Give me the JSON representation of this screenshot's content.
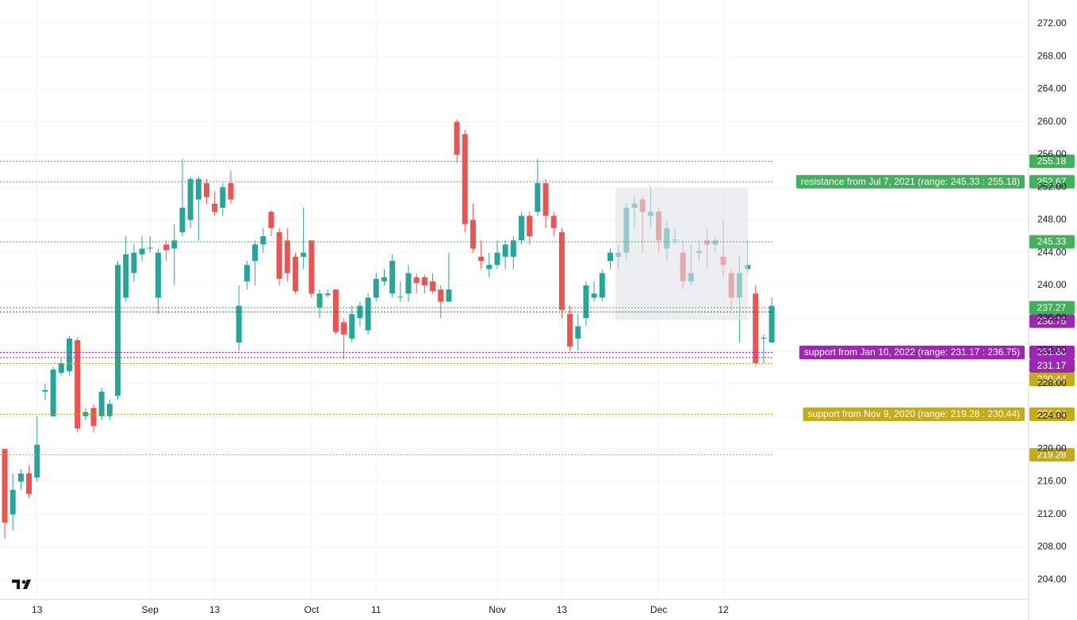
{
  "chart_data": {
    "type": "candlestick",
    "categories": [
      null,
      null,
      null,
      null,
      "13",
      null,
      null,
      null,
      null,
      null,
      null,
      null,
      null,
      null,
      null,
      null,
      null,
      null,
      "Sep",
      null,
      null,
      null,
      null,
      null,
      null,
      null,
      "13",
      null,
      null,
      null,
      null,
      null,
      null,
      null,
      null,
      null,
      null,
      null,
      "Oct",
      null,
      null,
      null,
      null,
      null,
      null,
      null,
      "11",
      null,
      null,
      null,
      null,
      null,
      null,
      null,
      null,
      null,
      null,
      null,
      null,
      null,
      null,
      "Nov",
      null,
      null,
      null,
      null,
      null,
      null,
      null,
      "13",
      null,
      null,
      null,
      null,
      null,
      null,
      null,
      null,
      null,
      null,
      null,
      "Dec",
      null,
      null,
      null,
      null,
      null,
      null,
      null,
      "12",
      null,
      null,
      null,
      null,
      null,
      null
    ],
    "open": [
      220,
      212,
      216,
      217,
      216.5,
      227,
      224,
      229.3,
      229.5,
      233.3,
      224,
      225,
      224,
      224,
      226.5,
      238.5,
      241.5,
      243.8,
      244.5,
      238.5,
      245,
      244.5,
      246.5,
      248,
      250.5,
      252.5,
      250,
      249.5,
      252.5,
      233,
      240.5,
      243,
      245,
      249,
      246.5,
      245.5,
      243.5,
      243.5,
      245.5,
      237.3,
      238.8,
      239.5,
      235.5,
      233.5,
      236,
      234.5,
      238.5,
      240.5,
      239,
      238.5,
      239,
      241,
      241,
      240.5,
      239.5,
      238,
      260,
      258.5,
      248,
      243.5,
      242,
      242.5,
      243.5,
      243.5,
      245.5,
      248.5,
      249,
      252.5,
      248.5,
      246.5,
      236.5,
      233.5,
      236,
      238.5,
      238.5,
      243,
      243.5,
      244,
      249.5,
      250.5,
      248.5,
      249,
      244.5,
      245.5,
      244,
      240.5,
      244,
      245.5,
      245,
      243.5,
      241.5,
      238.5,
      242,
      239,
      233.5,
      233
    ],
    "high": [
      220,
      217,
      217.5,
      218,
      224,
      228,
      230,
      231,
      233.8,
      233.6,
      225,
      225.5,
      227.5,
      226,
      243,
      246,
      245,
      246,
      246,
      244.5,
      245.5,
      247.5,
      255.5,
      253.3,
      253.3,
      253,
      251.5,
      252.5,
      254,
      240,
      243,
      245.5,
      247,
      249.2,
      247,
      247,
      244,
      249.5,
      245.5,
      239.5,
      239.5,
      239.5,
      236,
      237.5,
      238,
      239,
      241.5,
      242,
      243.8,
      240.5,
      242.5,
      241.5,
      241.3,
      241.5,
      240,
      244,
      260.3,
      259,
      250,
      245.5,
      244,
      245.5,
      245.5,
      246,
      249,
      249,
      255.5,
      253,
      249,
      247,
      237.5,
      236.5,
      240.5,
      240.5,
      242,
      244.5,
      245,
      250,
      251,
      251,
      252,
      249.5,
      248,
      247,
      245.5,
      245,
      245.5,
      247,
      246,
      248,
      242,
      243.5,
      245.5,
      240,
      234,
      238.5
    ],
    "low": [
      209,
      210,
      215,
      214,
      216,
      226,
      224,
      229,
      229,
      222,
      223.5,
      222,
      223.5,
      223.5,
      226,
      238,
      240.5,
      243,
      244,
      236.5,
      243,
      240,
      246,
      247,
      245.5,
      250,
      248.5,
      248.5,
      250,
      232,
      239.5,
      240,
      244,
      246,
      240,
      240.5,
      239,
      242,
      238.5,
      236,
      238.5,
      234,
      231,
      233,
      235,
      234,
      238,
      240,
      238.5,
      238,
      238,
      239,
      239,
      239,
      236,
      238,
      255,
      246.5,
      244,
      242,
      241,
      242,
      242,
      242,
      245,
      245,
      248.5,
      247,
      246,
      236,
      232,
      232,
      235,
      238,
      238,
      242,
      242,
      243,
      247,
      244,
      247,
      244,
      243,
      245,
      239.5,
      240,
      243,
      242,
      244,
      241,
      237,
      233,
      241.5,
      230.2,
      230.5,
      233
    ],
    "close": [
      211,
      215,
      217,
      214.5,
      220.5,
      227.2,
      229.7,
      230.5,
      233.5,
      222.5,
      224.5,
      222.8,
      227,
      225.5,
      242.5,
      243.8,
      244,
      244.5,
      244.6,
      244,
      244.3,
      245.5,
      249.5,
      253,
      253,
      250.8,
      249,
      252,
      250.5,
      237.5,
      242.5,
      245,
      246,
      247,
      240.8,
      241.5,
      239.3,
      244,
      239,
      239,
      239,
      234.3,
      234,
      236.5,
      237.5,
      238.5,
      240.8,
      241,
      243,
      238.6,
      241.5,
      240.3,
      240,
      239.3,
      238,
      239.5,
      256,
      247.5,
      244.5,
      243,
      242.5,
      244,
      245,
      245.5,
      248.5,
      246,
      252.5,
      248.5,
      247,
      237,
      232.5,
      235,
      240,
      239,
      241.5,
      244,
      244,
      249.5,
      250,
      249,
      249,
      245.5,
      247,
      245.6,
      240.5,
      241.5,
      244.2,
      245,
      245.5,
      242.5,
      238.5,
      241.5,
      242.5,
      230.5,
      233.6,
      237.5
    ],
    "up_color": "#26a69a",
    "down_color": "#ef5350",
    "ylim": [
      201.6,
      274.9
    ],
    "yticks": [
      {
        "value": 204,
        "label": "204.00"
      },
      {
        "value": 208,
        "label": "208.00"
      },
      {
        "value": 212,
        "label": "212.00"
      },
      {
        "value": 216,
        "label": "216.00"
      },
      {
        "value": 220,
        "label": "220.00"
      },
      {
        "value": 224,
        "label": "224.00"
      },
      {
        "value": 228,
        "label": "228.00"
      },
      {
        "value": 232,
        "label": "232.00"
      },
      {
        "value": 236,
        "label": "236.00"
      },
      {
        "value": 240,
        "label": "240.00"
      },
      {
        "value": 244,
        "label": "244.00"
      },
      {
        "value": 248,
        "label": "248.00"
      },
      {
        "value": 252,
        "label": "252.00"
      },
      {
        "value": 256,
        "label": "256.00"
      },
      {
        "value": 260,
        "label": "260.00"
      },
      {
        "value": 264,
        "label": "264.00"
      },
      {
        "value": 268,
        "label": "268.00"
      },
      {
        "value": 272,
        "label": "272.00"
      }
    ],
    "grid": true,
    "levels": [
      {
        "value": 255.18,
        "color": "#43b05c"
      },
      {
        "value": 252.67,
        "color": "#43b05c",
        "annotation": "resistance from Jul 7, 2021 (range: 245.33 : 255.18)"
      },
      {
        "value": 245.33,
        "color": "#43b05c"
      },
      {
        "value": 237.27,
        "color": "#43b05c"
      },
      {
        "value": 236.75,
        "color": "#9c27b0"
      },
      {
        "value": 231.8,
        "label": "231.80",
        "color": "#9c27b0",
        "annotation": "support from Jan 10, 2022 (range: 231.17 : 236.75)"
      },
      {
        "value": 231.17,
        "color": "#9c27b0"
      },
      {
        "value": 230.44,
        "color": "#c3ab1c"
      },
      {
        "value": 224.24,
        "color": "#c3ab1c",
        "annotation": "support from Nov 9, 2020 (range: 219.28 : 230.44)"
      },
      {
        "value": 219.28,
        "color": "#c3ab1c"
      }
    ]
  }
}
